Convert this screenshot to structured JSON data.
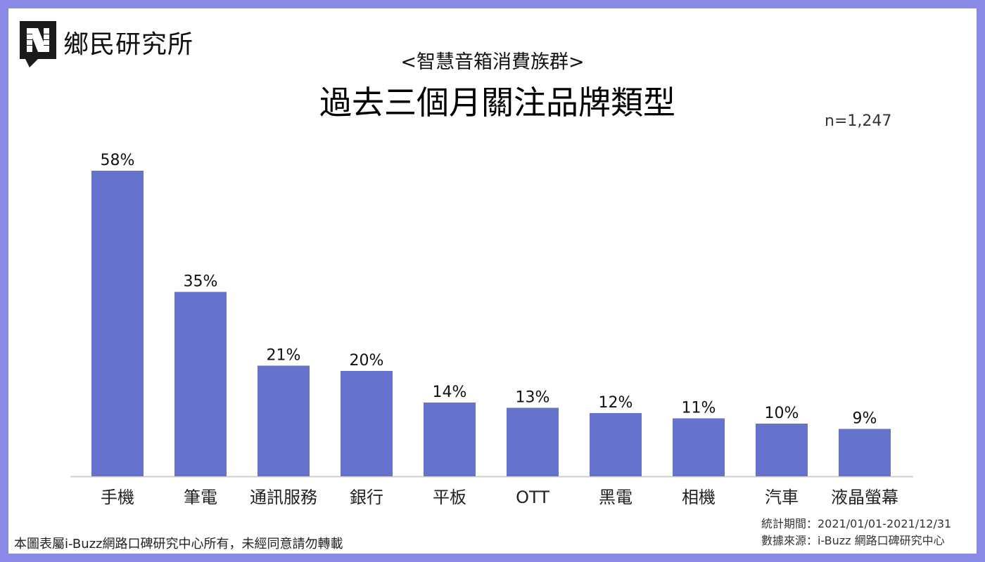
{
  "header": {
    "logo_text": "鄉民研究所",
    "logo_icon": "n-speech-bubble-icon",
    "subtitle": "<智慧音箱消費族群>",
    "title": "過去三個月關注品牌類型",
    "sample_size": "n=1,247"
  },
  "colors": {
    "frame": "#8b8ae6",
    "bar": "#6673cc",
    "axis": "#cfcfcf"
  },
  "chart_data": {
    "type": "bar",
    "categories": [
      "手機",
      "筆電",
      "通訊服務",
      "銀行",
      "平板",
      "OTT",
      "黑電",
      "相機",
      "汽車",
      "液晶螢幕"
    ],
    "values": [
      58,
      35,
      21,
      20,
      14,
      13,
      12,
      11,
      10,
      9
    ],
    "value_labels": [
      "58%",
      "35%",
      "21%",
      "20%",
      "14%",
      "13%",
      "12%",
      "11%",
      "10%",
      "9%"
    ],
    "unit": "%",
    "title": "過去三個月關注品牌類型",
    "xlabel": "",
    "ylabel": "",
    "ylim": [
      0,
      60
    ],
    "grid": false,
    "legend": "none"
  },
  "footer": {
    "copyright": "本圖表屬i-Buzz網路口碑研究中心所有，未經同意請勿轉載",
    "period": "統計期間：2021/01/01-2021/12/31",
    "source": "數據來源：i-Buzz 網路口碑研究中心"
  }
}
